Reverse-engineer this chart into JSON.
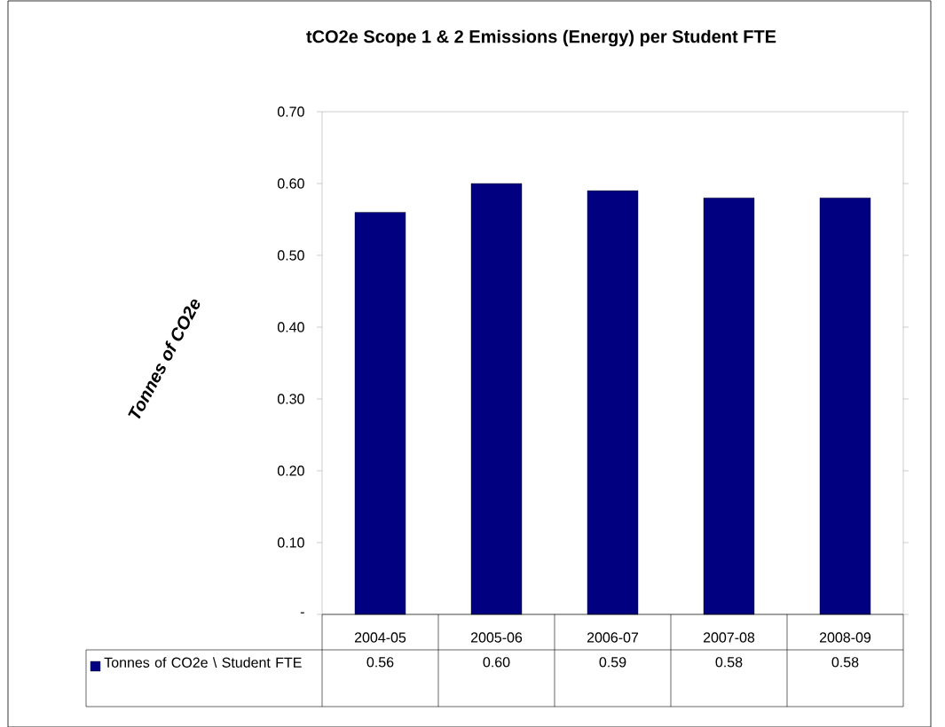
{
  "chart_data": {
    "type": "bar",
    "title": "tCO2e Scope 1 & 2 Emissions (Energy)  per Student FTE",
    "ylabel": "Tonnes of CO2e",
    "categories": [
      "2004-05",
      "2005-06",
      "2006-07",
      "2007-08",
      "2008-09"
    ],
    "series": [
      {
        "name": "Tonnes of CO2e \\ Student FTE",
        "color": "#000080",
        "values": [
          0.56,
          0.6,
          0.59,
          0.58,
          0.58
        ],
        "value_labels": [
          "0.56",
          "0.60",
          "0.59",
          "0.58",
          "0.58"
        ]
      }
    ],
    "ylim": [
      0,
      0.7
    ],
    "yticks": [
      {
        "value": 0,
        "label": "-"
      },
      {
        "value": 0.1,
        "label": "0.10"
      },
      {
        "value": 0.2,
        "label": "0.20"
      },
      {
        "value": 0.3,
        "label": "0.30"
      },
      {
        "value": 0.4,
        "label": "0.40"
      },
      {
        "value": 0.5,
        "label": "0.50"
      },
      {
        "value": 0.6,
        "label": "0.60"
      },
      {
        "value": 0.7,
        "label": "0.70"
      }
    ],
    "legend": "bottom"
  }
}
